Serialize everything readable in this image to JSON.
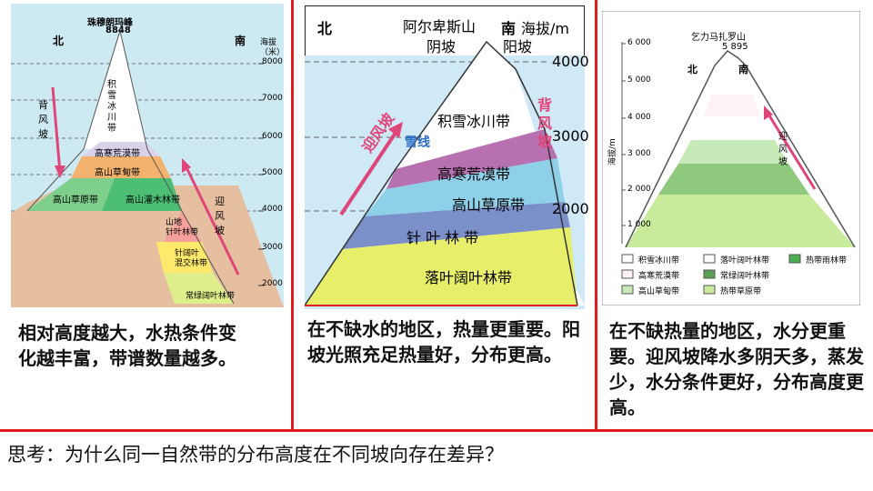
{
  "panel1": {
    "peak_name": "珠穆朗玛峰",
    "peak_height": "8848",
    "north": "北",
    "south": "南",
    "axis_title": "海拔\n（米）",
    "ticks": [
      "8000",
      "7000",
      "6000",
      "5000",
      "4000",
      "3000",
      "2000"
    ],
    "leeward": "背\n风\n坡",
    "windward": "迎\n风\n坡",
    "zones": [
      "积\n雪\n冰\n川\n带",
      "高寒荒漠带",
      "高山草甸带",
      "高山草原带",
      "高山灌木林带",
      "山地\n针叶林带",
      "针阔叶\n混交林带",
      "常绿阔叶林带"
    ]
  },
  "panel2": {
    "north": "北",
    "mountain": "阿尔卑斯山",
    "shady": "阴坡",
    "south": "南",
    "sunny": "阳坡",
    "axis_title": "海拔/m",
    "ticks": [
      "4000",
      "3000",
      "2000"
    ],
    "windward": "迎风坡",
    "leeward": "背\n风\n坡",
    "snowline": "雪线",
    "zones": [
      "积雪冰川带",
      "高寒荒漠带",
      "高山草原带",
      "针 叶 林 带",
      "落叶阔叶林带"
    ]
  },
  "panel3": {
    "mountain": "乞力马扎罗山",
    "height": "5 895",
    "north": "北",
    "south": "南",
    "axis_title": "海拔/m",
    "ticks": [
      "6 000",
      "5 000",
      "4 000",
      "3 000",
      "2 000",
      "1 000"
    ],
    "windward": "迎\n风\n坡",
    "legend": [
      "积雪冰川带",
      "落叶阔叶林带",
      "热带雨林带",
      "高寒荒漠带",
      "常绿阔叶林带",
      "高山草甸带",
      "热带草原带"
    ]
  },
  "captions": {
    "c1": "相对高度越大，水热条件变化越丰富，带谱数量越多。",
    "c2": "在不缺水的地区，热量更重要。阳坡光照充足热量好，分布更高。",
    "c3": "在不缺热量的地区，水分更重要。迎风坡降水多阴天多，蒸发少，水分条件更好，分布高度更高。"
  },
  "question": "思考：为什么同一自然带的分布高度在不同坡向存在差异？",
  "colors": {
    "divider": "#e31b1b"
  }
}
